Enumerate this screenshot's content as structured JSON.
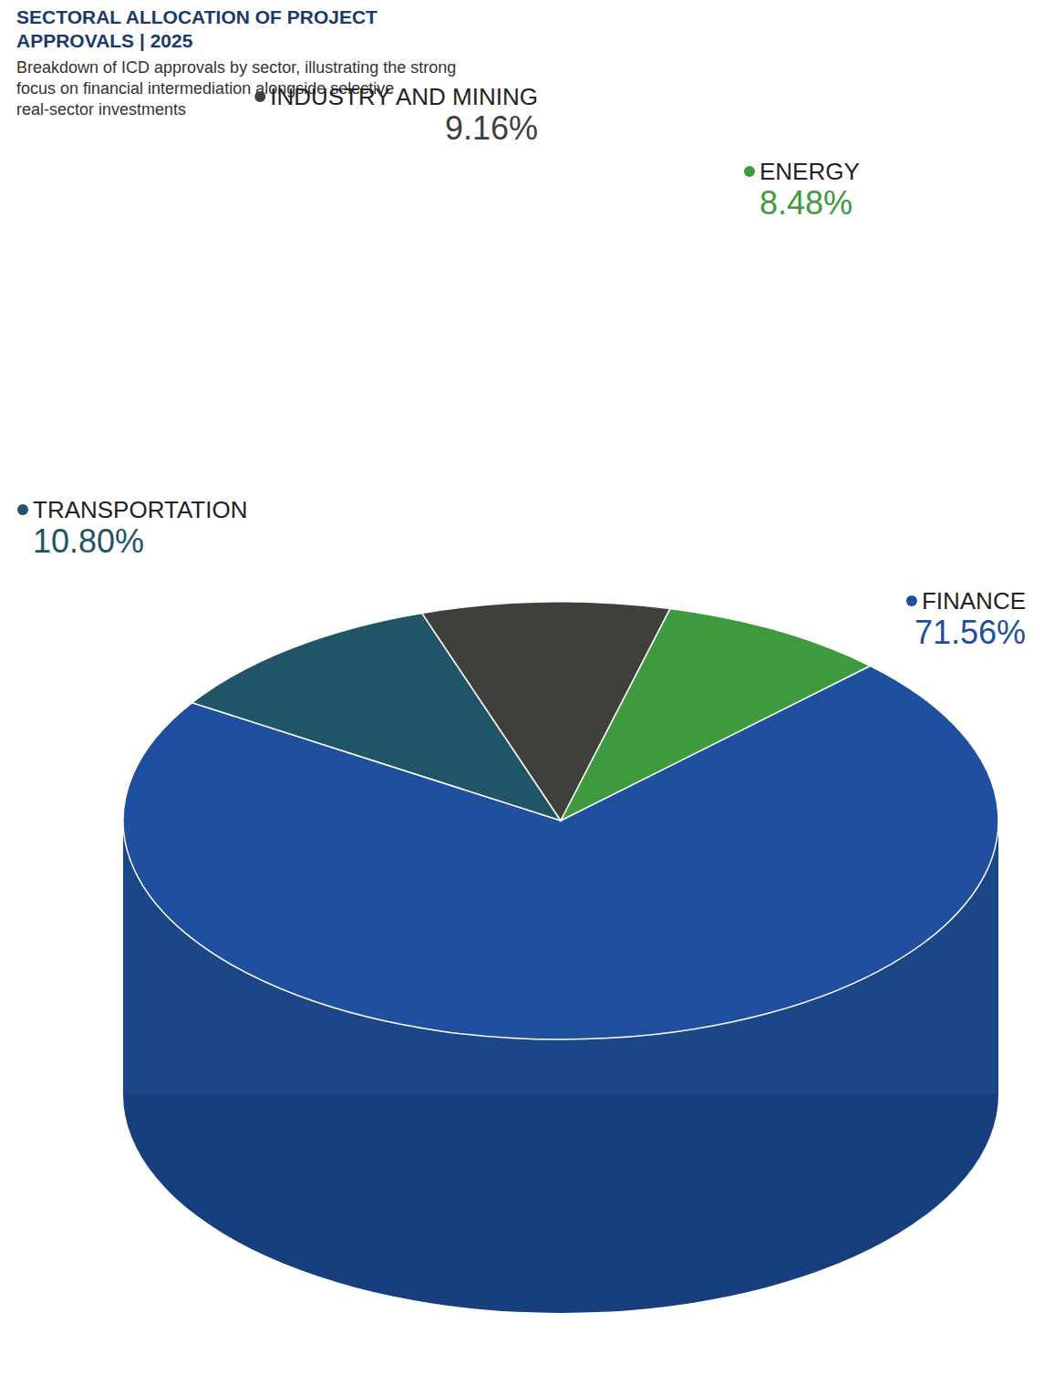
{
  "chart_data": {
    "type": "pie",
    "title": "SECTORAL ALLOCATION OF PROJECT APPROVALS | 2025",
    "subtitle": "Breakdown of ICD approvals by sector, illustrating the strong focus on financial intermediation alongside selective real-sector investments",
    "categories": [
      "FINANCE",
      "TRANSPORTATION",
      "INDUSTRY AND MINING",
      "ENERGY"
    ],
    "values": [
      71.56,
      10.8,
      9.16,
      8.48
    ],
    "value_labels": [
      "71.56%",
      "10.80%",
      "9.16%",
      "8.48%"
    ],
    "colors": [
      "#1f4f9e",
      "#1f5566",
      "#3f3f3c",
      "#3d9a3f"
    ],
    "data_labels": true
  }
}
